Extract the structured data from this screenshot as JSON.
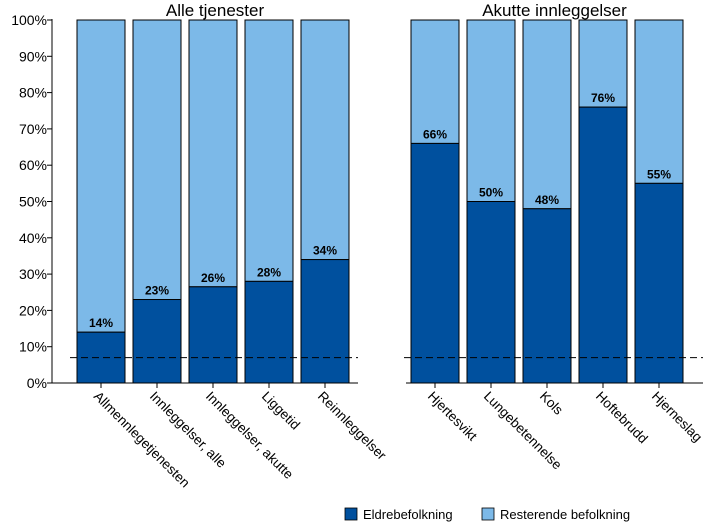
{
  "chart_data": {
    "type": "bar",
    "stacked": true,
    "ylim": [
      0,
      100
    ],
    "yticks": [
      "0%",
      "10%",
      "20%",
      "30%",
      "40%",
      "50%",
      "60%",
      "70%",
      "80%",
      "90%",
      "100%"
    ],
    "reference_line": 7,
    "colors": {
      "eldre": "#00509e",
      "resterende": "#7cb9e8"
    },
    "legend": {
      "position": "bottom-right",
      "entries": [
        "Eldrebefolkning",
        "Resterende befolkning"
      ]
    },
    "panels": [
      {
        "title": "Alle tjenester",
        "categories": [
          "Allmennlegetjenesten",
          "Innleggelser, alle",
          "Innleggelser, akutte",
          "Liggetid",
          "Reinnleggelser"
        ],
        "series": [
          {
            "name": "Eldrebefolkning",
            "values": [
              14,
              23,
              26.5,
              28,
              34
            ]
          },
          {
            "name": "Resterende befolkning",
            "values": [
              86,
              77,
              73.5,
              72,
              66
            ]
          }
        ],
        "labels": [
          "14%",
          "23%",
          "26%",
          "28%",
          "34%"
        ]
      },
      {
        "title": "Akutte innleggelser",
        "categories": [
          "Hjertesvikt",
          "Lungebetennelse",
          "Kols",
          "Hoftebrudd",
          "Hjerneslag"
        ],
        "series": [
          {
            "name": "Eldrebefolkning",
            "values": [
              66,
              50,
              48,
              76,
              55
            ]
          },
          {
            "name": "Resterende befolkning",
            "values": [
              34,
              50,
              52,
              24,
              45
            ]
          }
        ],
        "labels": [
          "66%",
          "50%",
          "48%",
          "76%",
          "55%"
        ]
      }
    ]
  }
}
